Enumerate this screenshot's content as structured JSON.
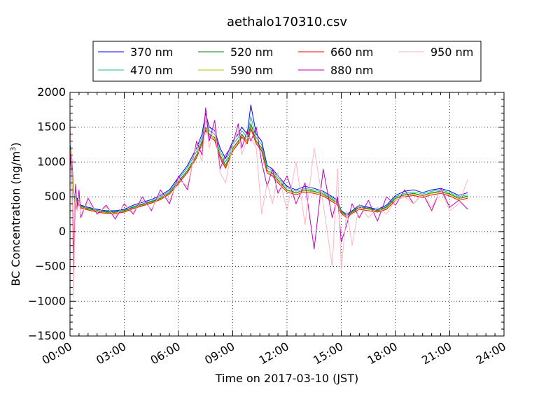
{
  "chart_data": {
    "type": "line",
    "title": "aethalo170310.csv",
    "xlabel": "Time on 2017-03-10 (JST)",
    "ylabel": "BC Concentration (ng/m³)",
    "ylabel_parts": {
      "main": "BC Concentration (ng/m",
      "sup": "3",
      "end": ")"
    },
    "x_unit": "hours",
    "xlim": [
      0,
      24
    ],
    "ylim": [
      -1500,
      2000
    ],
    "xticks": [
      0,
      3,
      6,
      9,
      12,
      15,
      18,
      21,
      24
    ],
    "xtick_labels": [
      "00:00",
      "03:00",
      "06:00",
      "09:00",
      "12:00",
      "15:00",
      "18:00",
      "21:00",
      "24:00"
    ],
    "yticks": [
      -1500,
      -1000,
      -500,
      0,
      500,
      1000,
      1500,
      2000
    ],
    "ytick_labels": [
      "−1500",
      "−1000",
      "−500",
      "0",
      "500",
      "1000",
      "1500",
      "2000"
    ],
    "grid": true,
    "legend_position": "top-center",
    "x": [
      0.0,
      0.1,
      0.2,
      0.3,
      0.4,
      0.5,
      0.6,
      1.0,
      1.5,
      2.0,
      2.5,
      3.0,
      3.5,
      4.0,
      4.5,
      5.0,
      5.5,
      6.0,
      6.5,
      7.0,
      7.3,
      7.5,
      7.7,
      8.0,
      8.3,
      8.6,
      9.0,
      9.3,
      9.5,
      9.8,
      10.0,
      10.3,
      10.6,
      10.9,
      11.2,
      11.5,
      12.0,
      12.5,
      13.0,
      13.5,
      14.0,
      14.5,
      14.8,
      15.0,
      15.3,
      15.6,
      16.0,
      16.5,
      17.0,
      17.5,
      18.0,
      18.5,
      19.0,
      19.5,
      20.0,
      20.5,
      21.0,
      21.5,
      22.0
    ],
    "series": [
      {
        "name": "370 nm",
        "color": "#0000ff",
        "values": [
          1250,
          1050,
          600,
          350,
          480,
          420,
          380,
          350,
          320,
          300,
          300,
          320,
          380,
          420,
          460,
          520,
          600,
          780,
          950,
          1200,
          1400,
          1700,
          1500,
          1450,
          1200,
          1050,
          1300,
          1400,
          1500,
          1400,
          1820,
          1400,
          1300,
          950,
          900,
          800,
          650,
          600,
          650,
          620,
          580,
          500,
          450,
          300,
          250,
          300,
          380,
          350,
          320,
          380,
          520,
          580,
          600,
          560,
          600,
          620,
          580,
          520,
          560
        ]
      },
      {
        "name": "470 nm",
        "color": "#1abc9c",
        "values": [
          1220,
          1020,
          580,
          340,
          460,
          410,
          370,
          340,
          310,
          290,
          290,
          310,
          360,
          400,
          440,
          500,
          580,
          750,
          920,
          1150,
          1350,
          1600,
          1450,
          1400,
          1150,
          1000,
          1250,
          1350,
          1450,
          1350,
          1650,
          1350,
          1250,
          920,
          870,
          770,
          630,
          580,
          620,
          600,
          560,
          480,
          430,
          290,
          240,
          290,
          360,
          340,
          310,
          360,
          500,
          550,
          570,
          540,
          580,
          600,
          560,
          500,
          530
        ]
      },
      {
        "name": "520 nm",
        "color": "#008000",
        "values": [
          1200,
          1000,
          560,
          330,
          450,
          400,
          360,
          330,
          300,
          280,
          280,
          300,
          350,
          390,
          430,
          480,
          560,
          720,
          880,
          1100,
          1300,
          1500,
          1400,
          1350,
          1100,
          950,
          1200,
          1300,
          1400,
          1300,
          1550,
          1300,
          1200,
          880,
          840,
          740,
          600,
          560,
          600,
          580,
          540,
          460,
          410,
          280,
          230,
          280,
          350,
          330,
          300,
          350,
          480,
          530,
          550,
          520,
          560,
          580,
          540,
          480,
          510
        ]
      },
      {
        "name": "590 nm",
        "color": "#bfbf00",
        "values": [
          1180,
          980,
          550,
          320,
          440,
          390,
          350,
          320,
          290,
          270,
          270,
          290,
          340,
          380,
          420,
          470,
          550,
          700,
          860,
          1080,
          1280,
          1480,
          1380,
          1330,
          1080,
          930,
          1180,
          1280,
          1380,
          1280,
          1500,
          1280,
          1180,
          860,
          820,
          720,
          590,
          550,
          590,
          570,
          530,
          450,
          400,
          270,
          220,
          270,
          340,
          320,
          290,
          340,
          470,
          520,
          540,
          510,
          550,
          570,
          530,
          470,
          500
        ]
      },
      {
        "name": "660 nm",
        "color": "#ff0000",
        "values": [
          1150,
          900,
          -300,
          310,
          430,
          380,
          340,
          310,
          280,
          260,
          260,
          280,
          330,
          370,
          410,
          460,
          540,
          690,
          850,
          1060,
          1260,
          1460,
          1360,
          1310,
          1060,
          910,
          1160,
          1260,
          1360,
          1260,
          1480,
          1260,
          1160,
          840,
          800,
          700,
          570,
          530,
          570,
          550,
          510,
          430,
          380,
          260,
          200,
          260,
          320,
          300,
          280,
          320,
          450,
          500,
          520,
          490,
          530,
          550,
          510,
          450,
          480
        ]
      },
      {
        "name": "880 nm",
        "color": "#bf00bf",
        "values": [
          1100,
          800,
          -650,
          680,
          350,
          600,
          200,
          480,
          250,
          380,
          180,
          400,
          250,
          500,
          300,
          600,
          400,
          800,
          600,
          1300,
          1100,
          1780,
          1300,
          1600,
          900,
          1100,
          1250,
          1550,
          1200,
          1450,
          1300,
          1500,
          1000,
          650,
          900,
          550,
          800,
          400,
          700,
          -250,
          900,
          200,
          500,
          -150,
          100,
          400,
          200,
          450,
          150,
          500,
          380,
          600,
          400,
          550,
          300,
          620,
          350,
          450,
          320
        ]
      },
      {
        "name": "950 nm",
        "color": "#ffb6c1",
        "values": [
          1600,
          1000,
          -950,
          550,
          300,
          450,
          250,
          420,
          280,
          350,
          220,
          380,
          280,
          450,
          320,
          550,
          450,
          750,
          650,
          1250,
          1000,
          1650,
          1200,
          1500,
          850,
          700,
          1250,
          1450,
          1100,
          1350,
          1350,
          1200,
          250,
          700,
          400,
          850,
          300,
          1000,
          100,
          1200,
          400,
          -500,
          900,
          -550,
          300,
          -200,
          400,
          200,
          350,
          250,
          450,
          500,
          400,
          550,
          350,
          600,
          300,
          400,
          750
        ]
      }
    ]
  }
}
